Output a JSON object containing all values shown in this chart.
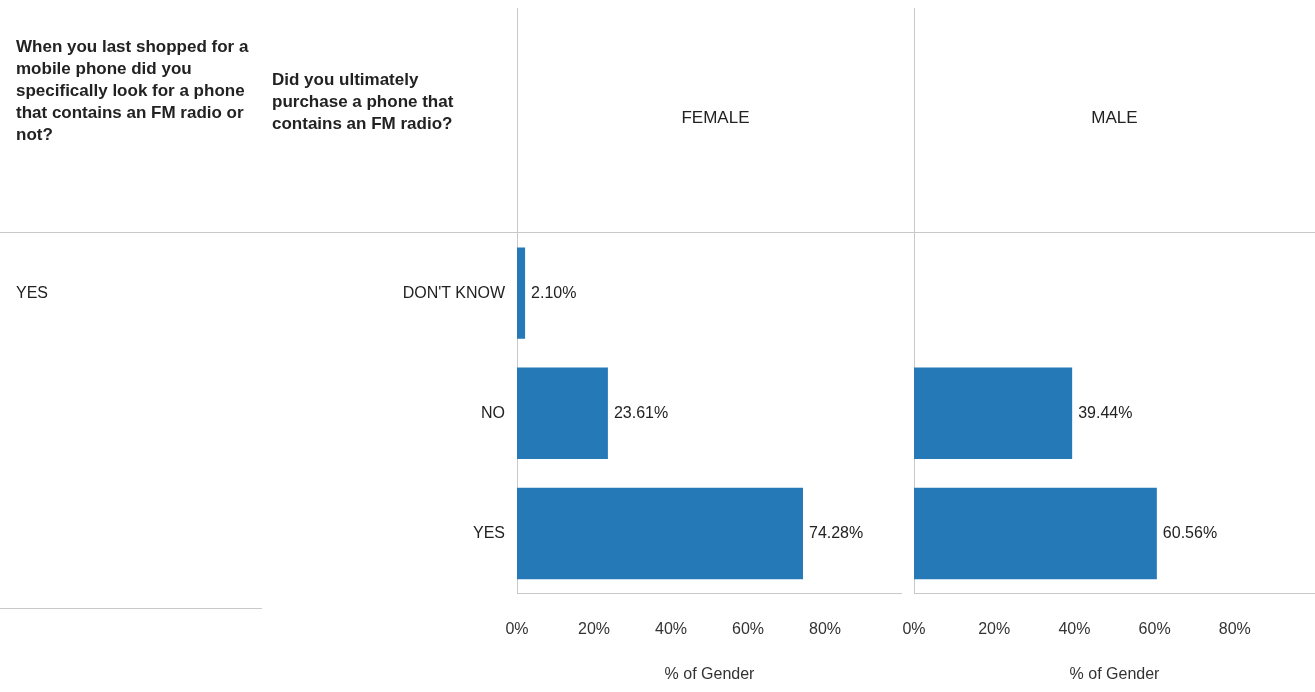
{
  "chart_data": [
    {
      "type": "bar",
      "orientation": "horizontal",
      "title": "FEMALE",
      "xlabel": "% of Gender",
      "annotations": [
        "When you last shopped for a mobile phone did you specifically look for a phone that contains an FM radio or not?",
        "Did you ultimately purchase a phone that contains an FM radio?",
        "YES"
      ],
      "categories": [
        "DON'T KNOW",
        "NO",
        "YES"
      ],
      "values": [
        2.1,
        23.61,
        74.28
      ],
      "value_labels": [
        "2.10%",
        "23.61%",
        "74.28%"
      ],
      "color": "#2479b6",
      "xlim": [
        0,
        100
      ],
      "xticks": [
        {
          "value": 0,
          "label": "0%"
        },
        {
          "value": 20,
          "label": "20%"
        },
        {
          "value": 40,
          "label": "40%"
        },
        {
          "value": 60,
          "label": "60%"
        },
        {
          "value": 80,
          "label": "80%"
        }
      ],
      "grid": false,
      "legend": false
    },
    {
      "type": "bar",
      "orientation": "horizontal",
      "title": "MALE",
      "xlabel": "% of Gender",
      "categories": [
        null,
        null,
        null
      ],
      "values": [
        null,
        39.44,
        60.56
      ],
      "value_labels": [
        null,
        "39.44%",
        "60.56%"
      ],
      "color": "#2479b6",
      "xlim": [
        0,
        100
      ],
      "xticks": [
        {
          "value": 0,
          "label": "0%"
        },
        {
          "value": 20,
          "label": "20%"
        },
        {
          "value": 40,
          "label": "40%"
        },
        {
          "value": 60,
          "label": "60%"
        },
        {
          "value": 80,
          "label": "80%"
        }
      ],
      "tick_labels": "x",
      "grid": false,
      "legend": false
    }
  ]
}
